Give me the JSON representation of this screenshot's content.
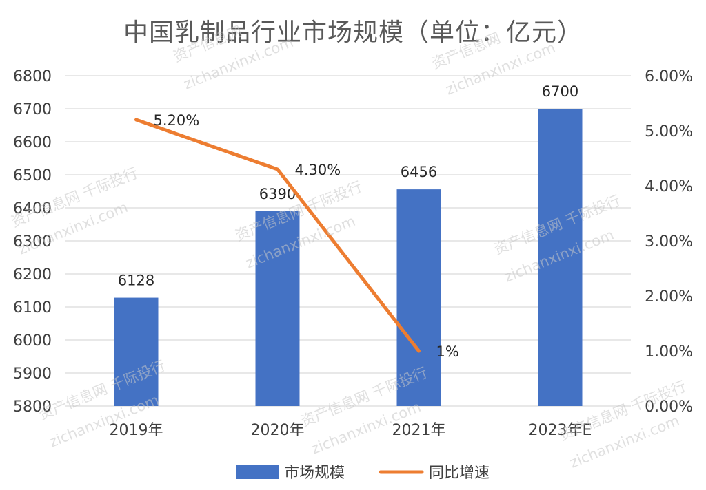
{
  "chart_data": {
    "type": "bar+line",
    "title": "中国乳制品行业市场规模（单位：亿元）",
    "categories": [
      "2019年",
      "2020年",
      "2021年",
      "2023年E"
    ],
    "series": [
      {
        "name": "市场规模",
        "type": "bar",
        "axis": "left",
        "values": [
          6128,
          6390,
          6456,
          6700
        ],
        "labels": [
          "6128",
          "6390",
          "6456",
          "6700"
        ],
        "color": "#4472C4"
      },
      {
        "name": "同比增速",
        "type": "line",
        "axis": "right",
        "values": [
          5.2,
          4.3,
          1.0,
          null
        ],
        "labels": [
          "5.20%",
          "4.30%",
          "1%",
          ""
        ],
        "color": "#ED7D31"
      }
    ],
    "y_left": {
      "min": 5800,
      "max": 6800,
      "ticks": [
        "5800",
        "5900",
        "6000",
        "6100",
        "6200",
        "6300",
        "6400",
        "6500",
        "6600",
        "6700",
        "6800"
      ]
    },
    "y_right": {
      "min": 0,
      "max": 6,
      "ticks": [
        "0.00%",
        "1.00%",
        "2.00%",
        "3.00%",
        "4.00%",
        "5.00%",
        "6.00%"
      ]
    },
    "grid": true,
    "legend": "bottom"
  },
  "watermark": {
    "site_cn": "资产信息网",
    "site_en": "zichanxinxi.com",
    "brand": "千际投行"
  }
}
